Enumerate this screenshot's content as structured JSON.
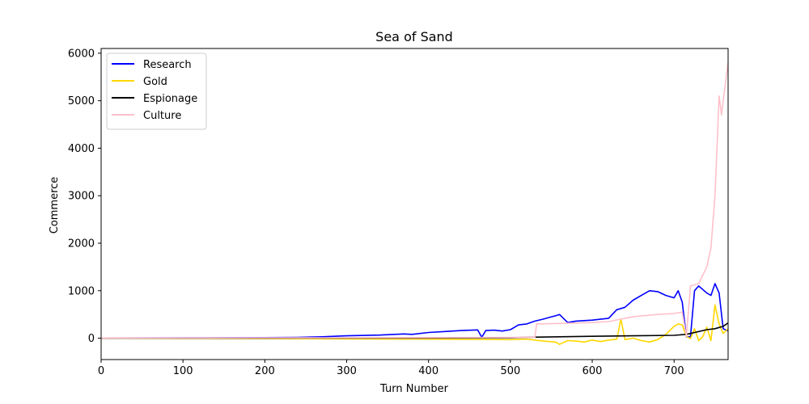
{
  "chart_data": {
    "type": "line",
    "title": "Sea of Sand",
    "xlabel": "Turn Number",
    "ylabel": "Commerce",
    "xlim": [
      0,
      766
    ],
    "ylim": [
      -450,
      6100
    ],
    "xticks": [
      0,
      100,
      200,
      300,
      400,
      500,
      600,
      700
    ],
    "yticks": [
      0,
      1000,
      2000,
      3000,
      4000,
      5000,
      6000
    ],
    "grid": false,
    "legend": "top-left",
    "series": [
      {
        "name": "Research",
        "color": "#0000ff",
        "points": [
          [
            0,
            5
          ],
          [
            100,
            8
          ],
          [
            200,
            12
          ],
          [
            240,
            18
          ],
          [
            270,
            30
          ],
          [
            300,
            50
          ],
          [
            340,
            65
          ],
          [
            370,
            90
          ],
          [
            380,
            80
          ],
          [
            400,
            120
          ],
          [
            420,
            140
          ],
          [
            440,
            160
          ],
          [
            460,
            175
          ],
          [
            465,
            20
          ],
          [
            470,
            160
          ],
          [
            480,
            170
          ],
          [
            490,
            150
          ],
          [
            500,
            180
          ],
          [
            510,
            280
          ],
          [
            520,
            300
          ],
          [
            530,
            360
          ],
          [
            540,
            400
          ],
          [
            550,
            450
          ],
          [
            555,
            470
          ],
          [
            560,
            500
          ],
          [
            570,
            330
          ],
          [
            580,
            360
          ],
          [
            600,
            380
          ],
          [
            620,
            420
          ],
          [
            630,
            600
          ],
          [
            640,
            650
          ],
          [
            650,
            800
          ],
          [
            660,
            900
          ],
          [
            670,
            1000
          ],
          [
            680,
            980
          ],
          [
            690,
            900
          ],
          [
            700,
            850
          ],
          [
            705,
            1000
          ],
          [
            710,
            760
          ],
          [
            715,
            30
          ],
          [
            720,
            30
          ],
          [
            725,
            1000
          ],
          [
            730,
            1100
          ],
          [
            740,
            950
          ],
          [
            745,
            900
          ],
          [
            750,
            1150
          ],
          [
            755,
            950
          ],
          [
            760,
            200
          ],
          [
            766,
            150
          ]
        ]
      },
      {
        "name": "Gold",
        "color": "#ffd700",
        "points": [
          [
            0,
            0
          ],
          [
            100,
            -5
          ],
          [
            200,
            -10
          ],
          [
            300,
            -15
          ],
          [
            400,
            -20
          ],
          [
            500,
            -30
          ],
          [
            520,
            -20
          ],
          [
            540,
            -60
          ],
          [
            555,
            -80
          ],
          [
            560,
            -130
          ],
          [
            570,
            -50
          ],
          [
            580,
            -60
          ],
          [
            590,
            -80
          ],
          [
            600,
            -40
          ],
          [
            610,
            -70
          ],
          [
            620,
            -40
          ],
          [
            630,
            -20
          ],
          [
            635,
            400
          ],
          [
            640,
            -30
          ],
          [
            650,
            0
          ],
          [
            660,
            -50
          ],
          [
            670,
            -80
          ],
          [
            680,
            -30
          ],
          [
            690,
            80
          ],
          [
            700,
            250
          ],
          [
            705,
            300
          ],
          [
            710,
            280
          ],
          [
            715,
            40
          ],
          [
            720,
            -10
          ],
          [
            725,
            200
          ],
          [
            730,
            -50
          ],
          [
            735,
            30
          ],
          [
            740,
            230
          ],
          [
            745,
            -50
          ],
          [
            750,
            700
          ],
          [
            755,
            300
          ],
          [
            760,
            100
          ],
          [
            766,
            200
          ]
        ]
      },
      {
        "name": "Espionage",
        "color": "#000000",
        "points": [
          [
            0,
            0
          ],
          [
            200,
            2
          ],
          [
            400,
            5
          ],
          [
            500,
            10
          ],
          [
            520,
            20
          ],
          [
            600,
            40
          ],
          [
            650,
            50
          ],
          [
            700,
            60
          ],
          [
            715,
            80
          ],
          [
            720,
            100
          ],
          [
            740,
            180
          ],
          [
            750,
            200
          ],
          [
            760,
            250
          ],
          [
            766,
            320
          ]
        ]
      },
      {
        "name": "Culture",
        "color": "#ffc0cb",
        "points": [
          [
            0,
            5
          ],
          [
            100,
            6
          ],
          [
            200,
            8
          ],
          [
            300,
            10
          ],
          [
            400,
            12
          ],
          [
            500,
            18
          ],
          [
            530,
            20
          ],
          [
            532,
            300
          ],
          [
            560,
            310
          ],
          [
            600,
            330
          ],
          [
            620,
            350
          ],
          [
            640,
            420
          ],
          [
            650,
            450
          ],
          [
            660,
            470
          ],
          [
            680,
            500
          ],
          [
            700,
            520
          ],
          [
            710,
            550
          ],
          [
            715,
            40
          ],
          [
            720,
            1100
          ],
          [
            730,
            1150
          ],
          [
            740,
            1500
          ],
          [
            745,
            1900
          ],
          [
            750,
            3000
          ],
          [
            755,
            5100
          ],
          [
            758,
            4700
          ],
          [
            760,
            5000
          ],
          [
            766,
            5800
          ]
        ]
      }
    ]
  }
}
